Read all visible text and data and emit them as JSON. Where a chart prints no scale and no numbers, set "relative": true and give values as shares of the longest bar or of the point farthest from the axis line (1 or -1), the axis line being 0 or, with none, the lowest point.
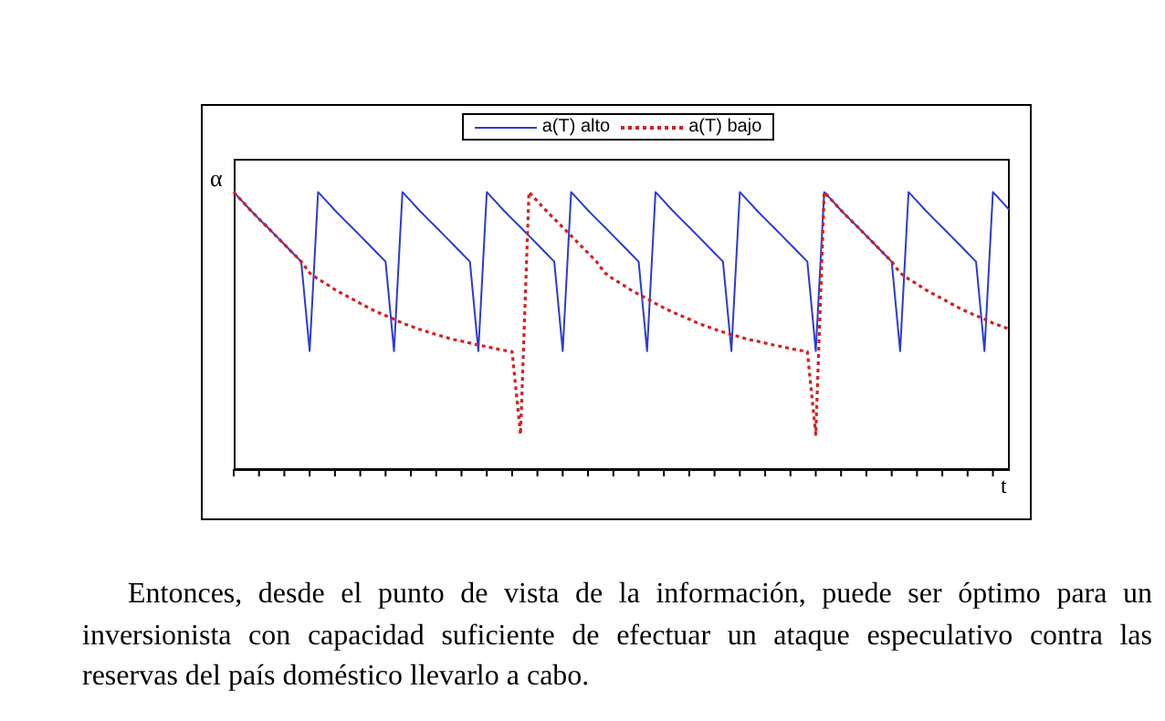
{
  "chart_data": {
    "type": "line",
    "relative": true,
    "xlabel": "t",
    "ylabel": "α",
    "legend": "top",
    "marker": "none",
    "categories": [
      null,
      null,
      null,
      null,
      null,
      null,
      null,
      null,
      null,
      null,
      null,
      null,
      null,
      null,
      null,
      null,
      null,
      null,
      null,
      null,
      null,
      null,
      null,
      null,
      null,
      null,
      null,
      null,
      null,
      null,
      null,
      null,
      null,
      null,
      null,
      null,
      null,
      null,
      null,
      null,
      null,
      null,
      null,
      null,
      null,
      null,
      null,
      null,
      null,
      null,
      null,
      null,
      null,
      null,
      null,
      null,
      null,
      null,
      null,
      null,
      null,
      null,
      null,
      null,
      null,
      null,
      null,
      null,
      null,
      null,
      null,
      null,
      null,
      null,
      null,
      null,
      null,
      null,
      null,
      null,
      null,
      null,
      null,
      null,
      null,
      null,
      null,
      null,
      null,
      null,
      null,
      null,
      null
    ],
    "series": [
      {
        "name": "a(T) alto",
        "color": "#2b3bd6",
        "line_style": "solid",
        "values": [
          1,
          0.967,
          0.934,
          0.903,
          0.873,
          0.842,
          0.811,
          0.78,
          0.749,
          0.426,
          1,
          0.967,
          0.934,
          0.903,
          0.873,
          0.842,
          0.811,
          0.78,
          0.749,
          0.426,
          1,
          0.967,
          0.934,
          0.903,
          0.873,
          0.842,
          0.811,
          0.78,
          0.749,
          0.426,
          1,
          0.967,
          0.934,
          0.903,
          0.873,
          0.842,
          0.811,
          0.78,
          0.749,
          0.426,
          1,
          0.967,
          0.934,
          0.903,
          0.873,
          0.842,
          0.811,
          0.78,
          0.749,
          0.426,
          1,
          0.967,
          0.934,
          0.903,
          0.873,
          0.842,
          0.811,
          0.78,
          0.749,
          0.426,
          1,
          0.967,
          0.934,
          0.903,
          0.873,
          0.842,
          0.811,
          0.78,
          0.749,
          0.426,
          1,
          0.967,
          0.934,
          0.903,
          0.873,
          0.842,
          0.811,
          0.78,
          0.749,
          0.426,
          1,
          0.967,
          0.934,
          0.903,
          0.873,
          0.842,
          0.811,
          0.78,
          0.749,
          0.426,
          1,
          0.967,
          0.934
        ]
      },
      {
        "name": "a(T) bajo",
        "color": "#d42020",
        "line_style": "dotted",
        "values": [
          1,
          0.967,
          0.934,
          0.903,
          0.873,
          0.842,
          0.811,
          0.78,
          0.749,
          0.708,
          0.686,
          0.668,
          0.648,
          0.631,
          0.615,
          0.598,
          0.582,
          0.567,
          0.554,
          0.541,
          0.527,
          0.516,
          0.505,
          0.495,
          0.486,
          0.477,
          0.468,
          0.462,
          0.455,
          0.448,
          0.442,
          0.435,
          0.429,
          0.424,
          0.125,
          1,
          0.967,
          0.934,
          0.903,
          0.873,
          0.842,
          0.811,
          0.78,
          0.749,
          0.708,
          0.686,
          0.668,
          0.648,
          0.631,
          0.615,
          0.598,
          0.582,
          0.567,
          0.554,
          0.541,
          0.527,
          0.516,
          0.505,
          0.495,
          0.486,
          0.477,
          0.468,
          0.462,
          0.455,
          0.448,
          0.442,
          0.435,
          0.429,
          0.424,
          0.125,
          1,
          0.967,
          0.934,
          0.903,
          0.873,
          0.842,
          0.811,
          0.78,
          0.749,
          0.708,
          0.686,
          0.668,
          0.648,
          0.631,
          0.615,
          0.598,
          0.582,
          0.567,
          0.554,
          0.541,
          0.527,
          0.516,
          0.505
        ]
      }
    ],
    "annotations": [
      "Entonces, desde el punto de vista de la información, puede ser óptimo para un inversionista con capacidad suficiente de efectuar un ataque especulativo contra las reservas del país doméstico llevarlo a cabo."
    ]
  }
}
